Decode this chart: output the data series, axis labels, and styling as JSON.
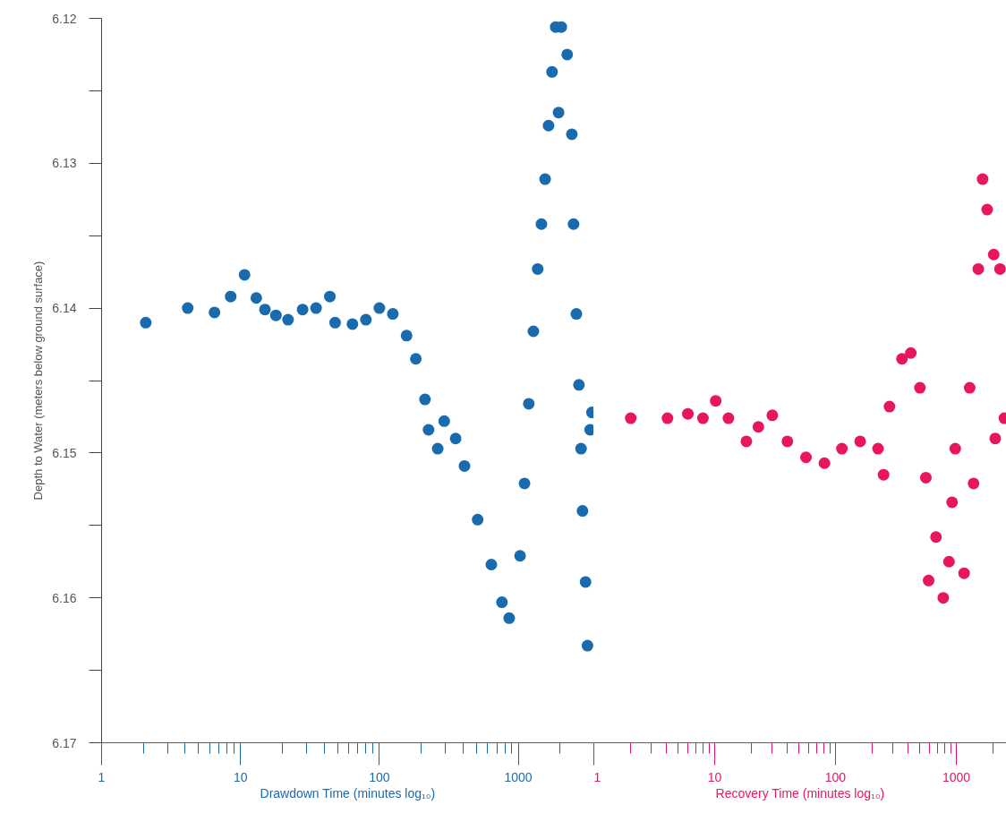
{
  "chart_data": [
    {
      "type": "scatter",
      "xlabel": "Drawdown Time (minutes log₁₀)",
      "ylabel": "Depth to Water (meters below ground surface)",
      "log": "x",
      "marker": "circle",
      "grid": false,
      "color": "#1a6aae",
      "xlim": [
        1,
        3500
      ],
      "xticks": [
        1,
        {
          "value": 2,
          "label": null
        },
        {
          "value": 3,
          "label": null
        },
        {
          "value": 4,
          "label": null
        },
        {
          "value": 5,
          "label": null
        },
        {
          "value": 6,
          "label": null
        },
        {
          "value": 7,
          "label": null
        },
        {
          "value": 8,
          "label": null
        },
        {
          "value": 9,
          "label": null
        },
        10,
        {
          "value": 20,
          "label": null
        },
        {
          "value": 30,
          "label": null
        },
        {
          "value": 40,
          "label": null
        },
        {
          "value": 50,
          "label": null
        },
        {
          "value": 60,
          "label": null
        },
        {
          "value": 70,
          "label": null
        },
        {
          "value": 80,
          "label": null
        },
        {
          "value": 90,
          "label": null
        },
        100,
        {
          "value": 200,
          "label": null
        },
        {
          "value": 300,
          "label": null
        },
        {
          "value": 400,
          "label": null
        },
        {
          "value": 500,
          "label": null
        },
        {
          "value": 600,
          "label": null
        },
        {
          "value": 700,
          "label": null
        },
        {
          "value": 800,
          "label": null
        },
        {
          "value": 900,
          "label": null
        },
        1000,
        {
          "value": 2000,
          "label": null
        }
      ],
      "ylim": [
        6.17,
        6.12
      ],
      "yticks": [
        6.12,
        {
          "value": 6.125,
          "label": null
        },
        6.13,
        {
          "value": 6.135,
          "label": null
        },
        6.14,
        {
          "value": 6.145,
          "label": null
        },
        6.15,
        {
          "value": 6.155,
          "label": null
        },
        6.16,
        {
          "value": 6.165,
          "label": null
        },
        6.17
      ],
      "x": [
        2.08,
        4.17,
        6.5,
        8.5,
        10.7,
        13,
        15,
        18,
        22,
        28,
        35,
        44,
        48,
        64,
        80,
        100,
        125,
        157,
        183,
        213,
        226,
        263,
        293,
        354,
        410,
        510,
        640,
        763,
        860,
        1030,
        1109,
        1190,
        1285,
        1380,
        1468,
        1560,
        1652,
        1750,
        1860,
        1950,
        2040,
        2250,
        2430,
        2500,
        2620,
        2734,
        2830,
        2900,
        3050,
        3150,
        3290,
        3390
      ],
      "values": [
        6.141,
        6.14,
        6.1403,
        6.1392,
        6.1377,
        6.1393,
        6.1401,
        6.1405,
        6.1408,
        6.1401,
        6.14,
        6.1392,
        6.141,
        6.1411,
        6.1408,
        6.14,
        6.1404,
        6.1419,
        6.1435,
        6.1463,
        6.1484,
        6.1497,
        6.1478,
        6.149,
        6.1509,
        6.1546,
        6.1577,
        6.1603,
        6.1614,
        6.1571,
        6.1521,
        6.1466,
        6.1416,
        6.1373,
        6.1342,
        6.1311,
        6.1274,
        6.1237,
        6.1206,
        6.1265,
        6.1206,
        6.1225,
        6.128,
        6.1342,
        6.1404,
        6.1453,
        6.1497,
        6.154,
        6.1589,
        6.1633,
        6.1484,
        6.1472
      ]
    },
    {
      "type": "scatter",
      "xlabel": "Recovery Time (minutes log₁₀)",
      "log": "x",
      "marker": "circle",
      "grid": false,
      "color": "#e8175d",
      "tick_labels": "x",
      "xlim": [
        1,
        2600
      ],
      "xticks": [
        1,
        {
          "value": 2,
          "label": null
        },
        {
          "value": 3,
          "label": null
        },
        {
          "value": 4,
          "label": null
        },
        {
          "value": 5,
          "label": null
        },
        {
          "value": 6,
          "label": null
        },
        {
          "value": 7,
          "label": null
        },
        {
          "value": 8,
          "label": null
        },
        {
          "value": 9,
          "label": null
        },
        10,
        {
          "value": 20,
          "label": null
        },
        {
          "value": 30,
          "label": null
        },
        {
          "value": 40,
          "label": null
        },
        {
          "value": 50,
          "label": null
        },
        {
          "value": 60,
          "label": null
        },
        {
          "value": 70,
          "label": null
        },
        {
          "value": 80,
          "label": null
        },
        {
          "value": 90,
          "label": null
        },
        100,
        {
          "value": 200,
          "label": null
        },
        {
          "value": 300,
          "label": null
        },
        {
          "value": 400,
          "label": null
        },
        {
          "value": 500,
          "label": null
        },
        {
          "value": 600,
          "label": null
        },
        {
          "value": 700,
          "label": null
        },
        {
          "value": 800,
          "label": null
        },
        {
          "value": 900,
          "label": null
        },
        1000,
        {
          "value": 2000,
          "label": null
        }
      ],
      "ylim": [
        6.17,
        6.12
      ],
      "x": [
        2.02,
        4.07,
        6.0,
        8.0,
        10.2,
        13,
        18.3,
        23,
        30,
        40,
        57,
        81,
        113,
        160,
        225,
        250,
        280,
        355,
        420,
        500,
        560,
        590,
        679,
        780,
        870,
        923,
        980,
        1160,
        1290,
        1390,
        1520,
        1651,
        1800,
        2040,
        2100,
        2300,
        2500
      ],
      "values": [
        6.1476,
        6.1476,
        6.1473,
        6.1476,
        6.1464,
        6.1476,
        6.1492,
        6.1482,
        6.1474,
        6.1492,
        6.1503,
        6.1507,
        6.1497,
        6.1492,
        6.1497,
        6.1515,
        6.1468,
        6.1435,
        6.1431,
        6.1455,
        6.1517,
        6.1588,
        6.1558,
        6.16,
        6.1575,
        6.1534,
        6.1497,
        6.1583,
        6.1455,
        6.1521,
        6.1373,
        6.1311,
        6.1332,
        6.1363,
        6.149,
        6.1373,
        6.1476
      ]
    }
  ]
}
